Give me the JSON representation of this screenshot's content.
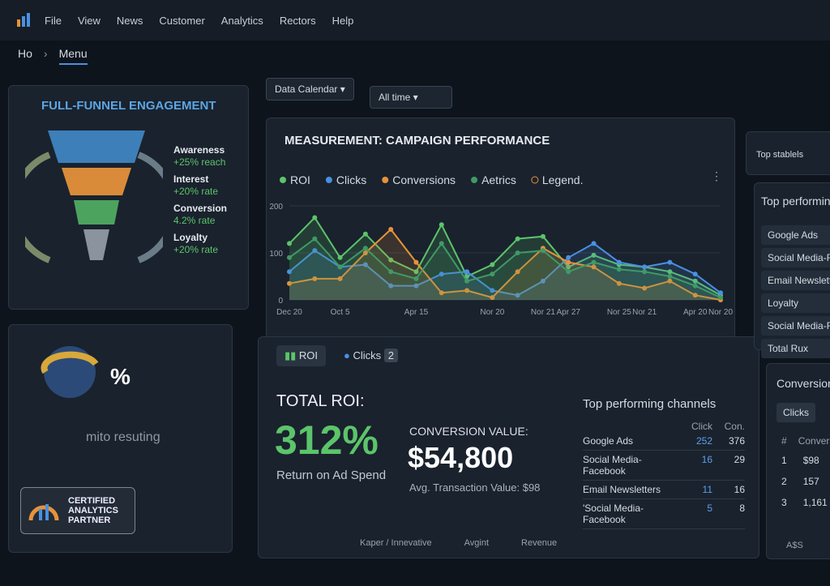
{
  "menu": {
    "items": [
      "File",
      "View",
      "News",
      "Customer",
      "Analytics",
      "Rectors",
      "Help"
    ]
  },
  "breadcrumb": {
    "home": "Ho",
    "current": "Menu"
  },
  "funnel": {
    "title": "FULL-FUNNEL ENGAGEMENT",
    "stages": [
      {
        "label": "Awareness",
        "detail": "+25% reach"
      },
      {
        "label": "Interest",
        "detail": "+20% rate"
      },
      {
        "label": "Conversion",
        "detail": "4.2% rate"
      },
      {
        "label": "Loyalty",
        "detail": "+20% rate"
      }
    ]
  },
  "badge_panel": {
    "symbol": "%",
    "caption": "mito resuting",
    "badge": [
      "CERTIFIED",
      "ANALYTICS",
      "PARTNER"
    ]
  },
  "filters": {
    "date": "Data Calendar",
    "range": "All time"
  },
  "chart_data": {
    "type": "line",
    "title": "MEASUREMENT: CAMPAIGN PERFORMANCE",
    "legend_note": "Legend.",
    "categories": [
      "Dec 20",
      null,
      "Oct 5",
      null,
      null,
      "Apr 15",
      null,
      null,
      "Nor 20",
      null,
      "Nor 21",
      "Apr 27",
      null,
      "Nor 25",
      "Nor 21",
      null,
      "Apr 20",
      "Nor 20"
    ],
    "series": [
      {
        "name": "ROI",
        "color": "#5cc46a",
        "values": [
          120,
          175,
          90,
          140,
          85,
          60,
          160,
          50,
          75,
          130,
          135,
          70,
          95,
          75,
          70,
          60,
          40,
          10
        ]
      },
      {
        "name": "Clicks",
        "color": "#4a90e2",
        "values": [
          60,
          105,
          70,
          75,
          30,
          30,
          55,
          60,
          20,
          10,
          40,
          90,
          120,
          80,
          70,
          80,
          55,
          15
        ]
      },
      {
        "name": "Conversions",
        "color": "#e8923a",
        "values": [
          35,
          45,
          45,
          100,
          150,
          80,
          15,
          20,
          5,
          60,
          110,
          80,
          70,
          35,
          25,
          40,
          10,
          0
        ]
      },
      {
        "name": "Aetrics",
        "color": "#3f9a66",
        "values": [
          90,
          130,
          70,
          110,
          60,
          45,
          120,
          40,
          55,
          100,
          105,
          60,
          80,
          65,
          60,
          50,
          30,
          5
        ]
      }
    ],
    "ylim": [
      0,
      200
    ],
    "yticks": [
      0,
      100,
      200
    ],
    "grid": true
  },
  "roi_panel": {
    "tabs": [
      "ROI",
      "Clicks"
    ],
    "clicks_badge": "2",
    "total_label": "TOTAL ROI:",
    "total_value": "312%",
    "total_caption": "Return on Ad Spend",
    "conversion_label": "CONVERSION VALUE:",
    "conversion_value": "$54,800",
    "conversion_caption": "Avg. Transaction Value: $98",
    "footer": [
      "Kaper / Innevative",
      "Avgint",
      "Revenue"
    ]
  },
  "channels": {
    "title": "Top performing channels",
    "columns": [
      "Click",
      "Con."
    ],
    "rows": [
      [
        "Google Ads",
        "252",
        "376"
      ],
      [
        "Social Media-Facebook",
        "16",
        "29"
      ],
      [
        "Email Newsletters",
        "11",
        "16"
      ],
      [
        "'Social Media-Facebook",
        "5",
        "8"
      ]
    ]
  },
  "right_top": {
    "label": "Top stablels"
  },
  "right_list": {
    "title": "Top performing",
    "items": [
      "Google Ads",
      "Social Media-Fac",
      "Email Newsletter",
      "Loyalty",
      "Social Media-Fa",
      "Total Rux"
    ]
  },
  "right_conv": {
    "title": "Conversion",
    "tab": "Clicks",
    "columns": [
      "#",
      "Conversi"
    ],
    "rows": [
      [
        "1",
        "$98"
      ],
      [
        "2",
        "157"
      ],
      [
        "3",
        "1,161"
      ]
    ],
    "footer": "A$S"
  }
}
